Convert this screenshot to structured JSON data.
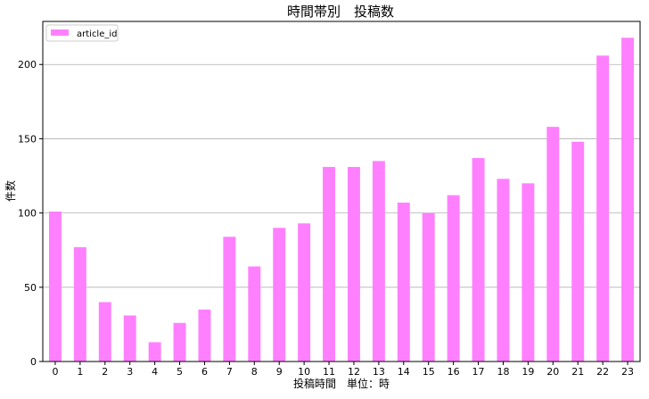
{
  "chart_data": {
    "type": "bar",
    "title": "時間帯別　投稿数",
    "xlabel": "投稿時間　単位：時",
    "ylabel": "件数",
    "categories": [
      "0",
      "1",
      "2",
      "3",
      "4",
      "5",
      "6",
      "7",
      "8",
      "9",
      "10",
      "11",
      "12",
      "13",
      "14",
      "15",
      "16",
      "17",
      "18",
      "19",
      "20",
      "21",
      "22",
      "23"
    ],
    "series": [
      {
        "name": "article_id",
        "values": [
          101,
          77,
          40,
          31,
          13,
          26,
          35,
          84,
          64,
          90,
          93,
          131,
          131,
          135,
          107,
          100,
          112,
          137,
          123,
          120,
          158,
          148,
          206,
          218
        ],
        "color": "#ff80ff"
      }
    ],
    "ylim": [
      0,
      229
    ],
    "yticks": [
      0,
      50,
      100,
      150,
      200
    ],
    "grid": "y",
    "legend_position": "top-left"
  }
}
